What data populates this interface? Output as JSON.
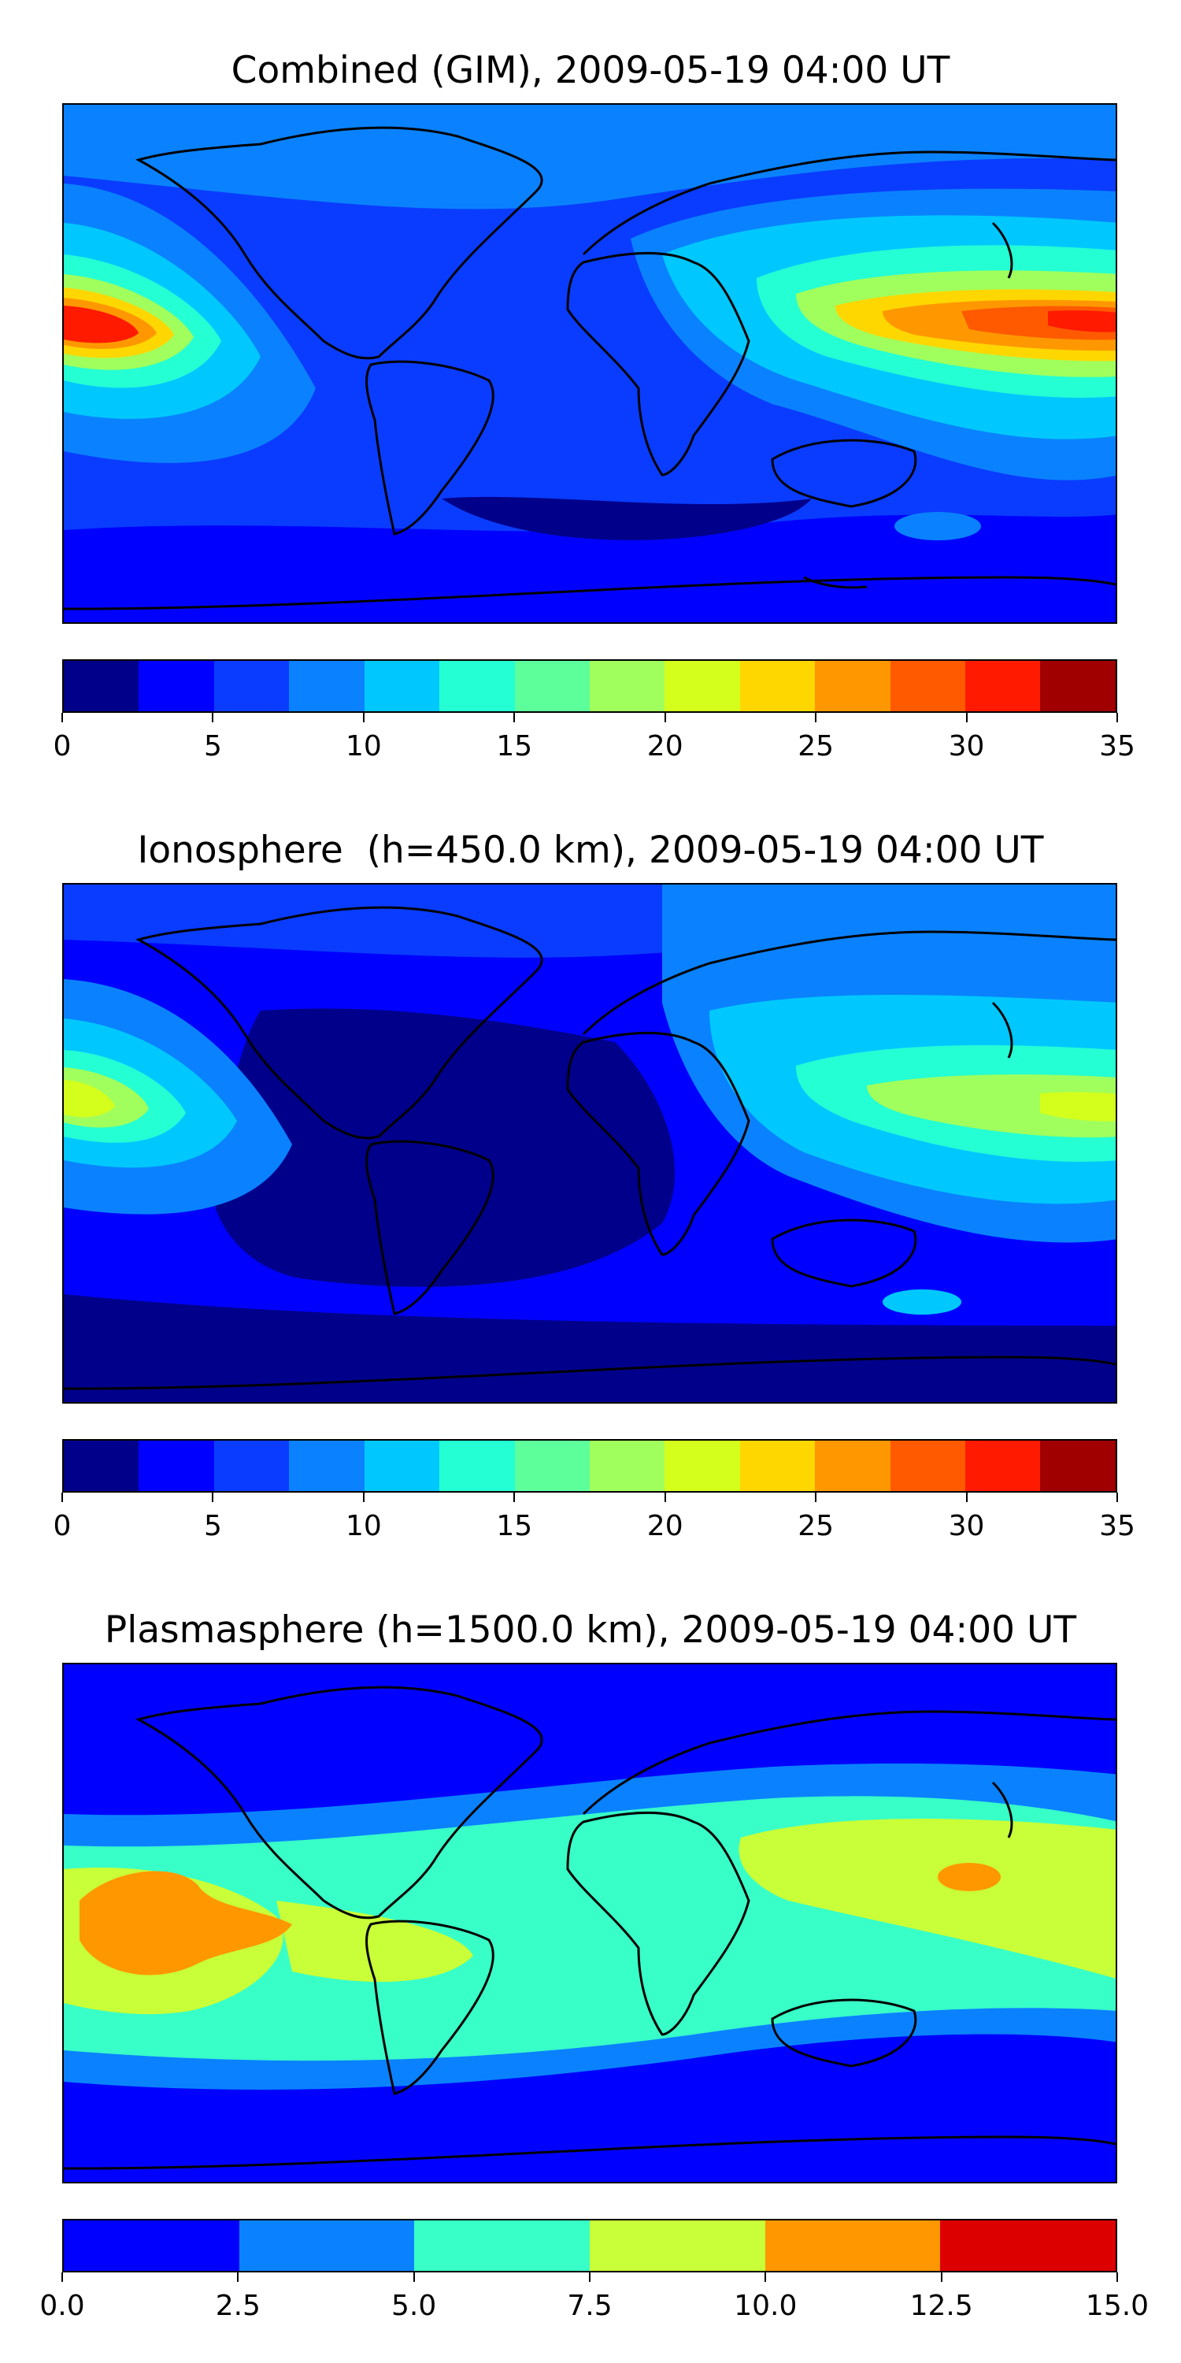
{
  "panels": [
    {
      "id": "combined",
      "title": "Combined (GIM), 2009-05-19 04:00 UT",
      "colorbar": {
        "colors": [
          "#00008b",
          "#0000ff",
          "#0a3cff",
          "#0a82ff",
          "#00c8ff",
          "#24ffd4",
          "#5cff9a",
          "#a0ff5c",
          "#d4ff1c",
          "#ffd700",
          "#ff9800",
          "#ff5a00",
          "#ff1a00",
          "#a00000"
        ],
        "ticks": [
          "0",
          "5",
          "10",
          "15",
          "20",
          "25",
          "30",
          "35"
        ],
        "range": [
          0,
          35
        ]
      }
    },
    {
      "id": "ionosphere",
      "title": "Ionosphere  (h=450.0 km), 2009-05-19 04:00 UT",
      "colorbar": {
        "colors": [
          "#00008b",
          "#0000ff",
          "#0a3cff",
          "#0a82ff",
          "#00c8ff",
          "#24ffd4",
          "#5cff9a",
          "#a0ff5c",
          "#d4ff1c",
          "#ffd700",
          "#ff9800",
          "#ff5a00",
          "#ff1a00",
          "#a00000"
        ],
        "ticks": [
          "0",
          "5",
          "10",
          "15",
          "20",
          "25",
          "30",
          "35"
        ],
        "range": [
          0,
          35
        ]
      }
    },
    {
      "id": "plasmasphere",
      "title": "Plasmasphere (h=1500.0 km), 2009-05-19 04:00 UT",
      "colorbar": {
        "colors": [
          "#0000ff",
          "#0a82ff",
          "#38ffc8",
          "#c8ff38",
          "#ff9800",
          "#dc0000"
        ],
        "ticks": [
          "0.0",
          "2.5",
          "5.0",
          "7.5",
          "10.0",
          "12.5",
          "15.0"
        ],
        "range": [
          0,
          15
        ]
      }
    }
  ]
}
